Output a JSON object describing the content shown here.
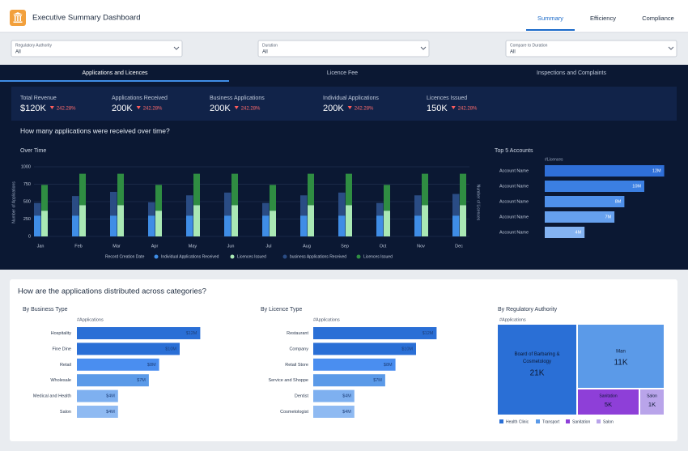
{
  "header": {
    "title": "Executive Summary Dashboard",
    "tabs": [
      "Summary",
      "Efficiency",
      "Compliance"
    ]
  },
  "filters": [
    {
      "label": "Regulatory Authority",
      "value": "All"
    },
    {
      "label": "Duration",
      "value": "All"
    },
    {
      "label": "Compare to Duration",
      "value": "All"
    }
  ],
  "panel_tabs": [
    "Applications and Licences",
    "Licence Fee",
    "Inspections and Complaints"
  ],
  "kpis": [
    {
      "label": "Total Revenue",
      "value": "$120K",
      "change": "242.28%"
    },
    {
      "label": "Applications Received",
      "value": "200K",
      "change": "242.28%"
    },
    {
      "label": "Business Applications",
      "value": "200K",
      "change": "242.28%"
    },
    {
      "label": "Individual Applications",
      "value": "200K",
      "change": "242.28%"
    },
    {
      "label": "Licences Issued",
      "value": "150K",
      "change": "242.28%"
    }
  ],
  "question_1": "How many applications were received over time?",
  "over_time": {
    "type": "bar",
    "title": "Over Time",
    "y_label": "Number of Applications",
    "y2_label": "Number of Licences",
    "x_label": "Record Creation Date",
    "categories": [
      "Jan",
      "Feb",
      "Mar",
      "Apr",
      "May",
      "Jun",
      "Jul",
      "Aug",
      "Sep",
      "Oct",
      "Nov",
      "Dec"
    ],
    "ylim": [
      0,
      1000
    ],
    "yticks": [
      0,
      250,
      500,
      750,
      1000
    ],
    "grid": true,
    "series": [
      {
        "name": "Individual Applications Received",
        "color": "#3f8de6",
        "values": [
          300,
          300,
          300,
          300,
          300,
          300,
          300,
          300,
          300,
          300,
          300,
          300
        ]
      },
      {
        "name": "Licences Issued",
        "color": "#a9e8b4",
        "values": [
          370,
          450,
          450,
          370,
          450,
          450,
          370,
          450,
          450,
          370,
          450,
          450
        ]
      },
      {
        "name": "business Applications Received",
        "color": "#2a4c84",
        "values": [
          180,
          280,
          340,
          190,
          290,
          330,
          180,
          290,
          330,
          180,
          290,
          310
        ]
      },
      {
        "name": "Licences Issued",
        "color": "#2f8d42",
        "values": [
          370,
          450,
          450,
          370,
          450,
          450,
          370,
          450,
          450,
          370,
          450,
          450
        ]
      }
    ]
  },
  "top_accounts": {
    "type": "bar",
    "title": "Top 5 Accounts",
    "axis_label": "#Licences",
    "categories": [
      "Account Name",
      "Account Name",
      "Account Name",
      "Account Name",
      "Account Name"
    ],
    "values": [
      12,
      10,
      8,
      7,
      4
    ],
    "value_labels": [
      "12M",
      "10M",
      "8M",
      "7M",
      "4M"
    ],
    "colors": [
      "#2f6fd8",
      "#3b7fe2",
      "#4f90ea",
      "#66a0ee",
      "#84b3f2"
    ]
  },
  "question_2": "How are the applications distributed across categories?",
  "business_type": {
    "type": "bar",
    "title": "By Business Type",
    "axis_label": "#Applications",
    "categories": [
      "Hospitality",
      "Fine Dine",
      "Retail",
      "Wholesale",
      "Medical and Health",
      "Salon"
    ],
    "values": [
      12,
      10,
      8,
      7,
      4,
      4
    ],
    "value_labels": [
      "$12M",
      "$10M",
      "$8M",
      "$7M",
      "$4M",
      "$4M"
    ],
    "colors": [
      "#2a6fd6",
      "#2a6fd6",
      "#4a8ef0",
      "#5b9ae8",
      "#7eb0f0",
      "#8fbaf2"
    ]
  },
  "licence_type": {
    "type": "bar",
    "title": "By Licence Type",
    "axis_label": "#Applications",
    "categories": [
      "Restaurant",
      "Company",
      "Retail Store",
      "Service and Shoppe",
      "Dentist",
      "Cosmetologist"
    ],
    "values": [
      12,
      10,
      8,
      7,
      4,
      4
    ],
    "value_labels": [
      "$12M",
      "$10M",
      "$8M",
      "$7M",
      "$4M",
      "$4M"
    ],
    "colors": [
      "#2a6fd6",
      "#2a6fd6",
      "#4a8ef0",
      "#5b9ae8",
      "#7eb0f0",
      "#8fbaf2"
    ]
  },
  "treemap": {
    "title": "By Regulatory Authority",
    "axis_label": "#Applications",
    "cells": [
      {
        "label": "Board of Barbaring & Cosmetology",
        "value": "21K",
        "color": "#2a6fd6"
      },
      {
        "label": "Man",
        "value": "11K",
        "color": "#5b9ae8"
      },
      {
        "label": "Sanitation",
        "value": "5K",
        "color": "#8e3fd8"
      },
      {
        "label": "Salon",
        "value": "1K",
        "color": "#b9a4ea"
      }
    ],
    "legend": [
      {
        "name": "Health Clinic",
        "color": "#2a6fd6"
      },
      {
        "name": "Transport",
        "color": "#5b9ae8"
      },
      {
        "name": "Sanitation",
        "color": "#8e3fd8"
      },
      {
        "name": "Salon",
        "color": "#b9a4ea"
      }
    ]
  }
}
